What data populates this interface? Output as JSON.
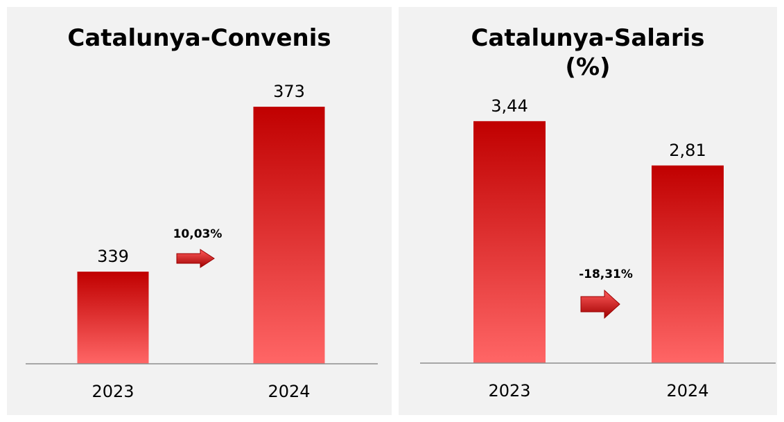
{
  "chart_data": [
    {
      "type": "bar",
      "title": "Catalunya-Convenis",
      "categories": [
        "2023",
        "2024"
      ],
      "values": [
        339,
        373
      ],
      "ylim": [
        320,
        380
      ],
      "colors": [
        "#c00000",
        "#ff6666"
      ],
      "annotation": "10,03%"
    },
    {
      "type": "bar",
      "title": "Catalunya-Salaris (%)",
      "categories": [
        "2023",
        "2024"
      ],
      "values": [
        3.44,
        2.81
      ],
      "value_labels": [
        "3,44",
        "2,81"
      ],
      "ylim": [
        0,
        4
      ],
      "colors": [
        "#c00000",
        "#ff6666"
      ],
      "annotation": "-18,31%"
    }
  ]
}
